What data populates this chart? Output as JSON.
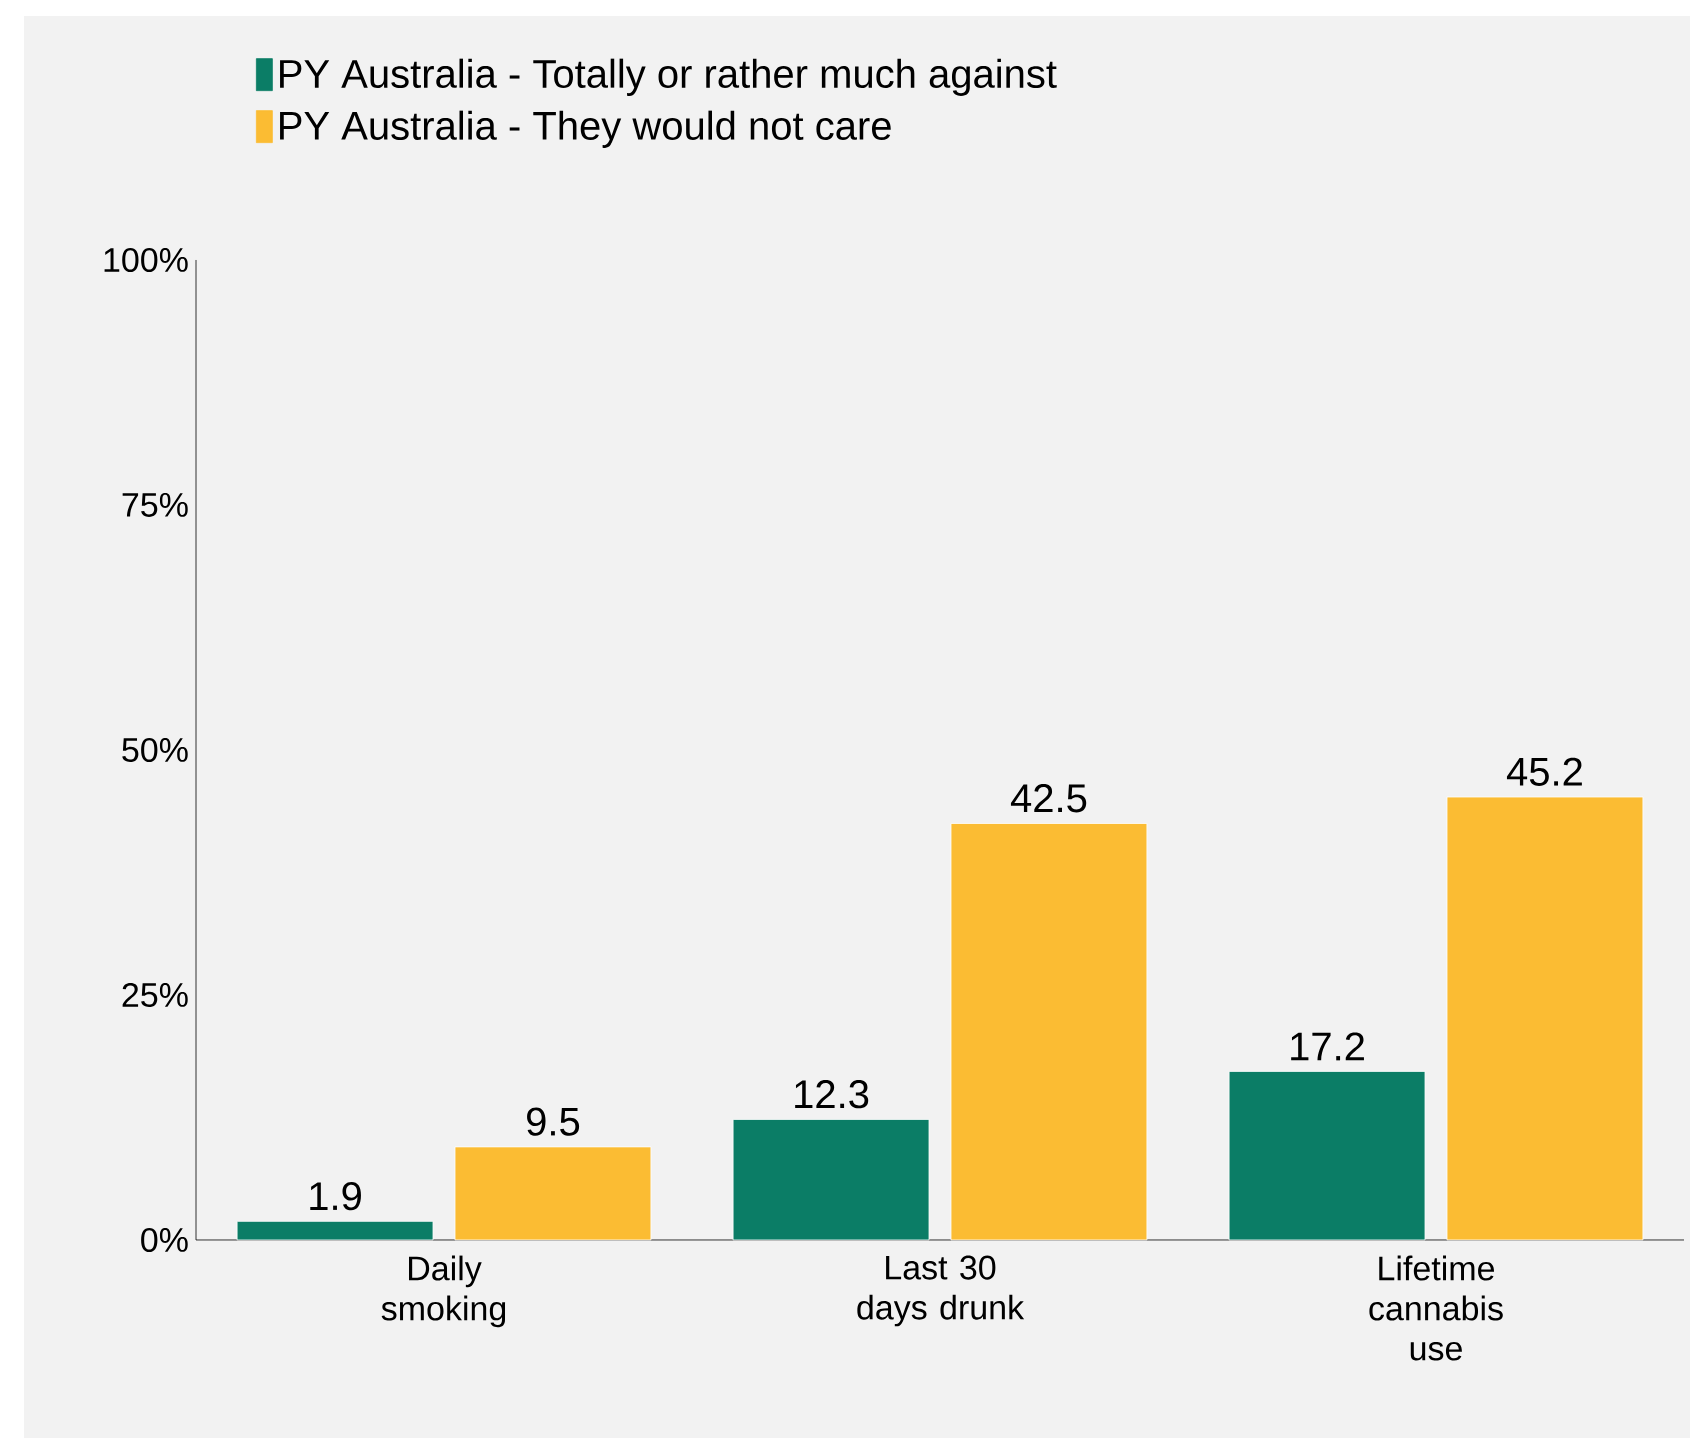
{
  "chart_data": {
    "type": "bar",
    "categories": [
      "Daily smoking",
      "Last 30 days drunk",
      "Lifetime cannabis use"
    ],
    "series": [
      {
        "name": "PY Australia - Totally or rather much against",
        "color": "#0b7d66",
        "values": [
          1.9,
          12.3,
          17.2
        ]
      },
      {
        "name": "PY Australia - They would not care",
        "color": "#fbbc33",
        "values": [
          9.5,
          42.5,
          45.2
        ]
      }
    ],
    "ylim": [
      0,
      100
    ],
    "yticks": [
      {
        "value": 0,
        "label": "0%"
      },
      {
        "value": 25,
        "label": "25%"
      },
      {
        "value": 50,
        "label": "50%"
      },
      {
        "value": 75,
        "label": "75%"
      },
      {
        "value": 100,
        "label": "100%"
      }
    ],
    "data_labels": true,
    "legend": "top",
    "grid": false
  }
}
